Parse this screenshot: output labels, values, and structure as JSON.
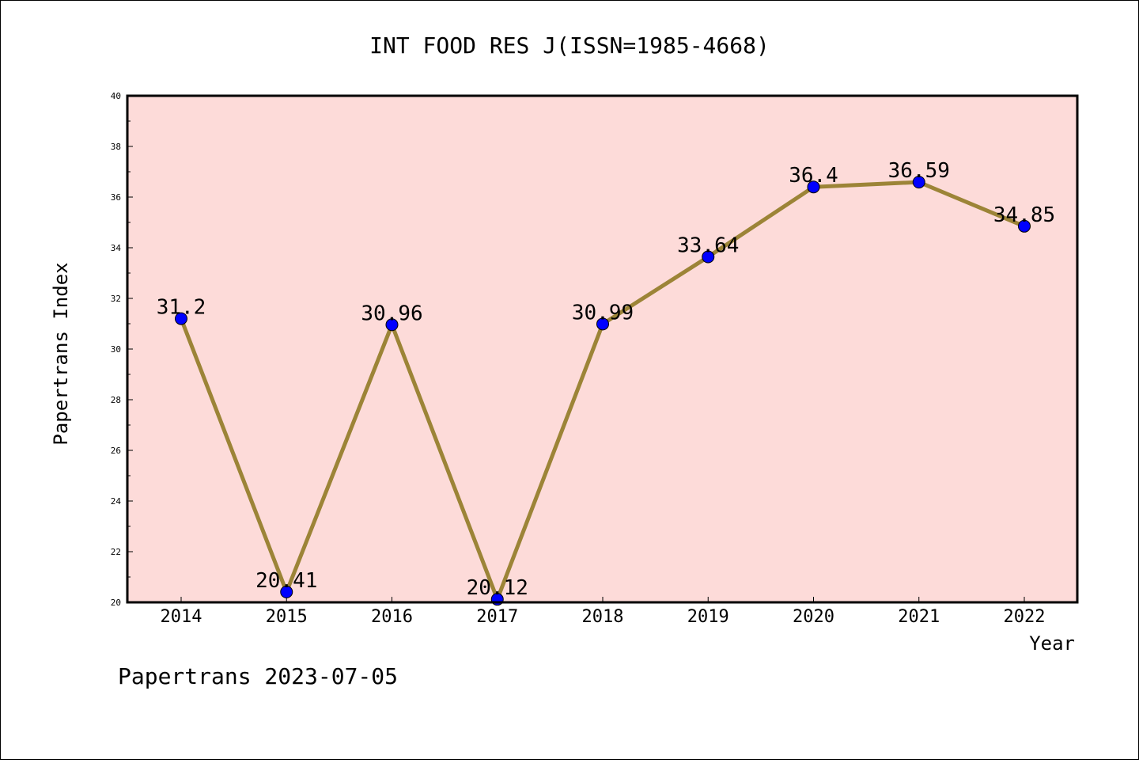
{
  "chart_data": {
    "type": "line",
    "title": "INT FOOD RES J(ISSN=1985-4668)",
    "xlabel": "Year",
    "ylabel": "Papertrans Index",
    "categories": [
      "2014",
      "2015",
      "2016",
      "2017",
      "2018",
      "2019",
      "2020",
      "2021",
      "2022"
    ],
    "series": [
      {
        "values": [
          31.2,
          20.41,
          30.96,
          20.12,
          30.99,
          33.64,
          36.4,
          36.59,
          34.85
        ]
      }
    ],
    "data_labels": [
      "31.2",
      "20.41",
      "30.96",
      "20.12",
      "30.99",
      "33.64",
      "36.4",
      "36.59",
      "34.85"
    ],
    "ylim": [
      20,
      40
    ],
    "y_ticks": [
      "20",
      "22",
      "24",
      "26",
      "28",
      "30",
      "32",
      "34",
      "36",
      "38",
      "40"
    ],
    "grid": false,
    "colors": {
      "plot_background": "#fddbd9",
      "line": "#9c8437",
      "marker": "#0000ff"
    }
  },
  "footer": {
    "text": "Papertrans 2023-07-05"
  }
}
